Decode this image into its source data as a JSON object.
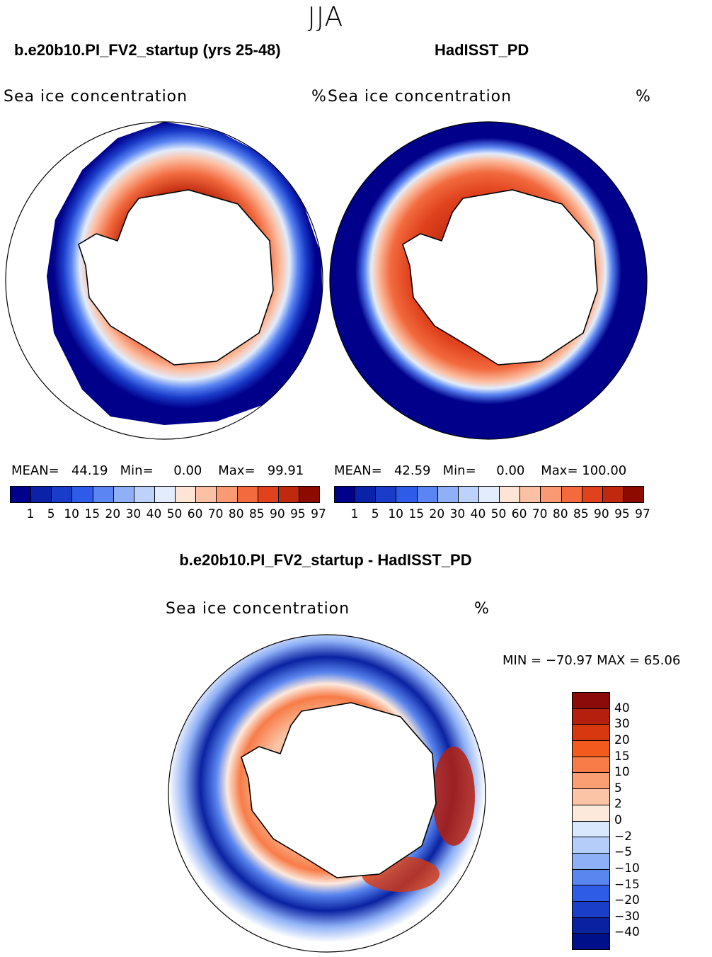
{
  "season": "JJA",
  "panels": [
    {
      "case_title": "b.e20b10.PI_FV2_startup (yrs 25-48)",
      "field_label": "Sea ice concentration",
      "units": "%",
      "mean_label": "MEAN=",
      "mean": "44.19",
      "min_label": "Min=",
      "min": "0.00",
      "max_label": "Max=",
      "max": "99.91"
    },
    {
      "case_title": "HadISST_PD",
      "field_label": "Sea ice concentration",
      "units": "%",
      "mean_label": "MEAN=",
      "mean": "42.59",
      "min_label": "Min=",
      "min": "0.00",
      "max_label": "Max=",
      "max": "100.00"
    }
  ],
  "colorbar": {
    "tick_labels": [
      "1",
      "5",
      "10",
      "15",
      "20",
      "30",
      "40",
      "50",
      "60",
      "70",
      "80",
      "85",
      "90",
      "95",
      "97"
    ],
    "colors": [
      "#00008b",
      "#0a22a8",
      "#1a3cc9",
      "#2e5be8",
      "#5a85f2",
      "#8fb0f7",
      "#bcd2fa",
      "#e2ecfc",
      "#fde4d4",
      "#fcc0a4",
      "#f99a74",
      "#f26a3e",
      "#e0421e",
      "#bf2a0e",
      "#8c0a00"
    ]
  },
  "difference": {
    "title": "b.e20b10.PI_FV2_startup - HadISST_PD",
    "field_label": "Sea ice concentration",
    "units": "%",
    "minmax_text": "MIN = −70.97 MAX =   65.06",
    "colorbar_labels": [
      "40",
      "30",
      "20",
      "15",
      "10",
      "5",
      "2",
      "0",
      "−2",
      "−5",
      "−10",
      "−15",
      "−20",
      "−30",
      "−40"
    ],
    "colorbar_colors": [
      "#8b0a0a",
      "#b5200e",
      "#d8380f",
      "#f25a1e",
      "#f77c48",
      "#fa9e74",
      "#fcc4a6",
      "#fde9dc",
      "#d9e8fc",
      "#b4cdf9",
      "#8eb0f6",
      "#5a86ef",
      "#2e5ce6",
      "#1a3ec7",
      "#0a22a2",
      "#00108a"
    ]
  }
}
